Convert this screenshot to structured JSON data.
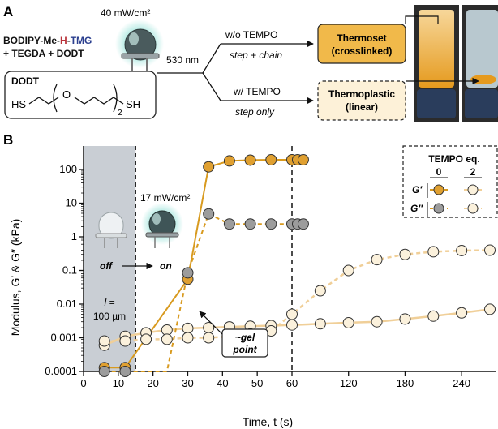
{
  "panel_a": {
    "label": "A",
    "power": "40 mW/cm²",
    "reagents": [
      {
        "parts": [
          {
            "text": "BODIPY-Me-",
            "color": "#111111"
          },
          {
            "text": "H",
            "color": "#b8323a"
          },
          {
            "text": "-",
            "color": "#111111"
          },
          {
            "text": "TMG",
            "color": "#2b3f8f"
          }
        ]
      },
      {
        "parts": [
          {
            "text": "+ TEGDA + DODT",
            "color": "#111111"
          }
        ]
      }
    ],
    "wavelength": "530 nm",
    "dodt_name": "DODT",
    "dodt_hs": "HS",
    "dodt_sh": "SH",
    "dodt_o": "O",
    "dodt_sub": "2",
    "branch_top": {
      "condition": "w/o TEMPO",
      "mode": "step + chain",
      "product_line1": "Thermoset",
      "product_line2": "(crosslinked)"
    },
    "branch_bottom": {
      "condition": "w/ TEMPO",
      "mode": "step only",
      "product_line1": "Thermoplastic",
      "product_line2": "(linear)"
    }
  },
  "panel_b": {
    "label": "B",
    "power": "17 mW/cm²",
    "led_off": "off",
    "led_on": "on",
    "thickness_line1": "l =",
    "thickness_line2": "100 µm",
    "gel_line1": "~gel",
    "gel_line2": "point",
    "legend": {
      "title": "TEMPO eq.",
      "col0": "0",
      "col2": "2",
      "row1": "G′",
      "row2": "G″"
    }
  },
  "colors": {
    "gold": "#e0a030",
    "gold_line": "#d89a1f",
    "grey_marker": "#9c9c9c",
    "pale_marker": "#fbf1dc",
    "pale_line": "#f0cf98",
    "shade": "#c9ced4",
    "product_top": "#f1b94a",
    "product_bottom": "#fdf1d8"
  },
  "chart_data": {
    "type": "scatter",
    "title": "",
    "xlabel": "Time, t (s)",
    "ylabel": "Modulus, G′ & G″ (kPa)",
    "yscale": "log",
    "ylim": [
      0.0001,
      500
    ],
    "xticks": [
      "0",
      "10",
      "20",
      "30",
      "40",
      "50",
      "60",
      "120",
      "180",
      "240"
    ],
    "yticks": [
      "0.0001",
      "0.001",
      "0.01",
      "0.1",
      "1",
      "10",
      "100"
    ],
    "x_axis_break": "linear 0–60 s, compressed 60–270 s",
    "light_off_region": [
      0,
      15
    ],
    "light_on_time": 15,
    "marker_line_at": 60,
    "series": [
      {
        "name": "G′ 0 eq.",
        "style": "solid",
        "marker": "gold",
        "x": [
          6,
          12,
          30,
          36,
          42,
          48,
          54,
          60,
          66,
          72
        ],
        "y": [
          0.00013,
          0.00013,
          0.055,
          120,
          180,
          190,
          195,
          195,
          195,
          195
        ]
      },
      {
        "name": "G″ 0 eq.",
        "style": "dashed",
        "marker": "grey",
        "x": [
          6,
          12,
          30,
          36,
          42,
          48,
          54,
          60,
          66,
          72
        ],
        "y": [
          0.0001,
          0.0001,
          0.085,
          4.8,
          2.4,
          2.4,
          2.4,
          2.4,
          2.4,
          2.4
        ],
        "line_x": [
          6,
          13,
          20,
          24,
          30,
          36,
          42,
          72
        ],
        "line_y": [
          0.0001,
          0.0001,
          0.0001,
          0.0001,
          0.085,
          4.8,
          2.4,
          2.4
        ]
      },
      {
        "name": "G′ 2 eq.",
        "style": "solid",
        "marker": "pale",
        "x": [
          6,
          12,
          18,
          24,
          30,
          36,
          42,
          48,
          54,
          60,
          90,
          120,
          150,
          180,
          210,
          240,
          270
        ],
        "y": [
          0.0006,
          0.0011,
          0.0014,
          0.0017,
          0.0019,
          0.002,
          0.0021,
          0.0022,
          0.0023,
          0.0024,
          0.0026,
          0.0028,
          0.003,
          0.0036,
          0.0044,
          0.0055,
          0.007
        ]
      },
      {
        "name": "G″ 2 eq.",
        "style": "dashed",
        "marker": "pale",
        "x": [
          6,
          12,
          18,
          24,
          30,
          36,
          42,
          48,
          54,
          60,
          90,
          120,
          150,
          180,
          210,
          240,
          270
        ],
        "y": [
          0.0008,
          0.0008,
          0.0009,
          0.0009,
          0.001,
          0.001,
          0.0011,
          0.0013,
          0.0016,
          0.005,
          0.025,
          0.1,
          0.21,
          0.3,
          0.36,
          0.39,
          0.4
        ]
      }
    ]
  }
}
